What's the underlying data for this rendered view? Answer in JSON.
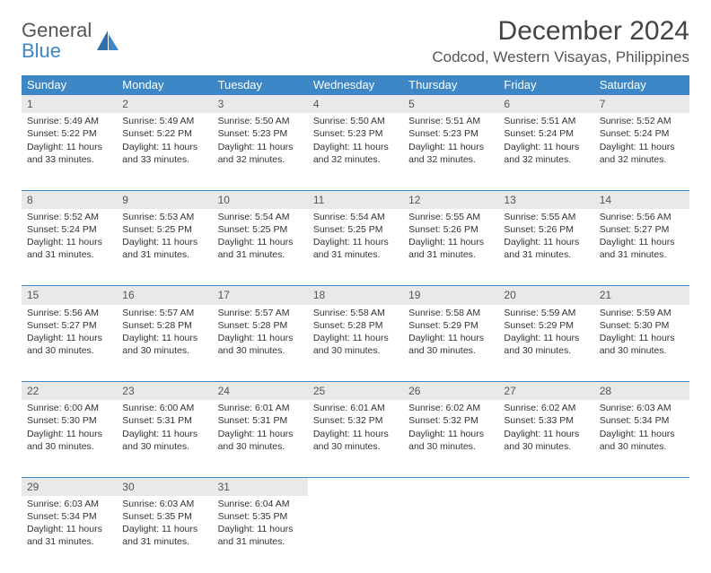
{
  "brand": {
    "line1": "General",
    "line2": "Blue",
    "icon_color": "#2f6fa8"
  },
  "title": "December 2024",
  "location": "Codcod, Western Visayas, Philippines",
  "colors": {
    "header_bg": "#3e87c6",
    "header_text": "#ffffff",
    "daynum_bg": "#e9e9e9",
    "body_text": "#333333",
    "rule": "#3e87c6"
  },
  "day_headers": [
    "Sunday",
    "Monday",
    "Tuesday",
    "Wednesday",
    "Thursday",
    "Friday",
    "Saturday"
  ],
  "weeks": [
    [
      {
        "n": "1",
        "sr": "Sunrise: 5:49 AM",
        "ss": "Sunset: 5:22 PM",
        "d1": "Daylight: 11 hours",
        "d2": "and 33 minutes."
      },
      {
        "n": "2",
        "sr": "Sunrise: 5:49 AM",
        "ss": "Sunset: 5:22 PM",
        "d1": "Daylight: 11 hours",
        "d2": "and 33 minutes."
      },
      {
        "n": "3",
        "sr": "Sunrise: 5:50 AM",
        "ss": "Sunset: 5:23 PM",
        "d1": "Daylight: 11 hours",
        "d2": "and 32 minutes."
      },
      {
        "n": "4",
        "sr": "Sunrise: 5:50 AM",
        "ss": "Sunset: 5:23 PM",
        "d1": "Daylight: 11 hours",
        "d2": "and 32 minutes."
      },
      {
        "n": "5",
        "sr": "Sunrise: 5:51 AM",
        "ss": "Sunset: 5:23 PM",
        "d1": "Daylight: 11 hours",
        "d2": "and 32 minutes."
      },
      {
        "n": "6",
        "sr": "Sunrise: 5:51 AM",
        "ss": "Sunset: 5:24 PM",
        "d1": "Daylight: 11 hours",
        "d2": "and 32 minutes."
      },
      {
        "n": "7",
        "sr": "Sunrise: 5:52 AM",
        "ss": "Sunset: 5:24 PM",
        "d1": "Daylight: 11 hours",
        "d2": "and 32 minutes."
      }
    ],
    [
      {
        "n": "8",
        "sr": "Sunrise: 5:52 AM",
        "ss": "Sunset: 5:24 PM",
        "d1": "Daylight: 11 hours",
        "d2": "and 31 minutes."
      },
      {
        "n": "9",
        "sr": "Sunrise: 5:53 AM",
        "ss": "Sunset: 5:25 PM",
        "d1": "Daylight: 11 hours",
        "d2": "and 31 minutes."
      },
      {
        "n": "10",
        "sr": "Sunrise: 5:54 AM",
        "ss": "Sunset: 5:25 PM",
        "d1": "Daylight: 11 hours",
        "d2": "and 31 minutes."
      },
      {
        "n": "11",
        "sr": "Sunrise: 5:54 AM",
        "ss": "Sunset: 5:25 PM",
        "d1": "Daylight: 11 hours",
        "d2": "and 31 minutes."
      },
      {
        "n": "12",
        "sr": "Sunrise: 5:55 AM",
        "ss": "Sunset: 5:26 PM",
        "d1": "Daylight: 11 hours",
        "d2": "and 31 minutes."
      },
      {
        "n": "13",
        "sr": "Sunrise: 5:55 AM",
        "ss": "Sunset: 5:26 PM",
        "d1": "Daylight: 11 hours",
        "d2": "and 31 minutes."
      },
      {
        "n": "14",
        "sr": "Sunrise: 5:56 AM",
        "ss": "Sunset: 5:27 PM",
        "d1": "Daylight: 11 hours",
        "d2": "and 31 minutes."
      }
    ],
    [
      {
        "n": "15",
        "sr": "Sunrise: 5:56 AM",
        "ss": "Sunset: 5:27 PM",
        "d1": "Daylight: 11 hours",
        "d2": "and 30 minutes."
      },
      {
        "n": "16",
        "sr": "Sunrise: 5:57 AM",
        "ss": "Sunset: 5:28 PM",
        "d1": "Daylight: 11 hours",
        "d2": "and 30 minutes."
      },
      {
        "n": "17",
        "sr": "Sunrise: 5:57 AM",
        "ss": "Sunset: 5:28 PM",
        "d1": "Daylight: 11 hours",
        "d2": "and 30 minutes."
      },
      {
        "n": "18",
        "sr": "Sunrise: 5:58 AM",
        "ss": "Sunset: 5:28 PM",
        "d1": "Daylight: 11 hours",
        "d2": "and 30 minutes."
      },
      {
        "n": "19",
        "sr": "Sunrise: 5:58 AM",
        "ss": "Sunset: 5:29 PM",
        "d1": "Daylight: 11 hours",
        "d2": "and 30 minutes."
      },
      {
        "n": "20",
        "sr": "Sunrise: 5:59 AM",
        "ss": "Sunset: 5:29 PM",
        "d1": "Daylight: 11 hours",
        "d2": "and 30 minutes."
      },
      {
        "n": "21",
        "sr": "Sunrise: 5:59 AM",
        "ss": "Sunset: 5:30 PM",
        "d1": "Daylight: 11 hours",
        "d2": "and 30 minutes."
      }
    ],
    [
      {
        "n": "22",
        "sr": "Sunrise: 6:00 AM",
        "ss": "Sunset: 5:30 PM",
        "d1": "Daylight: 11 hours",
        "d2": "and 30 minutes."
      },
      {
        "n": "23",
        "sr": "Sunrise: 6:00 AM",
        "ss": "Sunset: 5:31 PM",
        "d1": "Daylight: 11 hours",
        "d2": "and 30 minutes."
      },
      {
        "n": "24",
        "sr": "Sunrise: 6:01 AM",
        "ss": "Sunset: 5:31 PM",
        "d1": "Daylight: 11 hours",
        "d2": "and 30 minutes."
      },
      {
        "n": "25",
        "sr": "Sunrise: 6:01 AM",
        "ss": "Sunset: 5:32 PM",
        "d1": "Daylight: 11 hours",
        "d2": "and 30 minutes."
      },
      {
        "n": "26",
        "sr": "Sunrise: 6:02 AM",
        "ss": "Sunset: 5:32 PM",
        "d1": "Daylight: 11 hours",
        "d2": "and 30 minutes."
      },
      {
        "n": "27",
        "sr": "Sunrise: 6:02 AM",
        "ss": "Sunset: 5:33 PM",
        "d1": "Daylight: 11 hours",
        "d2": "and 30 minutes."
      },
      {
        "n": "28",
        "sr": "Sunrise: 6:03 AM",
        "ss": "Sunset: 5:34 PM",
        "d1": "Daylight: 11 hours",
        "d2": "and 30 minutes."
      }
    ],
    [
      {
        "n": "29",
        "sr": "Sunrise: 6:03 AM",
        "ss": "Sunset: 5:34 PM",
        "d1": "Daylight: 11 hours",
        "d2": "and 31 minutes."
      },
      {
        "n": "30",
        "sr": "Sunrise: 6:03 AM",
        "ss": "Sunset: 5:35 PM",
        "d1": "Daylight: 11 hours",
        "d2": "and 31 minutes."
      },
      {
        "n": "31",
        "sr": "Sunrise: 6:04 AM",
        "ss": "Sunset: 5:35 PM",
        "d1": "Daylight: 11 hours",
        "d2": "and 31 minutes."
      },
      null,
      null,
      null,
      null
    ]
  ]
}
